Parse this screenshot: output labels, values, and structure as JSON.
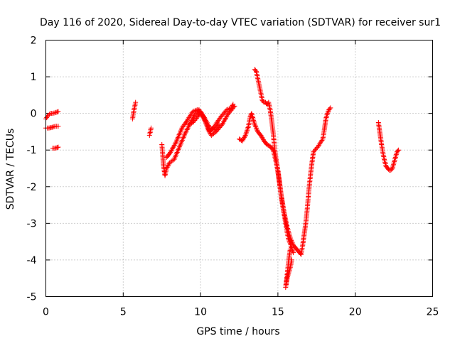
{
  "chart_data": {
    "type": "scatter",
    "title": "Day 116 of 2020, Sidereal Day-to-day VTEC variation (SDTVAR) for receiver sur1",
    "xlabel": "GPS time / hours",
    "ylabel": "SDTVAR / TECUs",
    "xlim": [
      0,
      25
    ],
    "ylim": [
      -5,
      2
    ],
    "xticks": [
      0,
      5,
      10,
      15,
      20,
      25
    ],
    "yticks": [
      -5,
      -4,
      -3,
      -2,
      -1,
      0,
      1,
      2
    ],
    "xtick_labels": [
      "0",
      "5",
      "10",
      "15",
      "20",
      "25"
    ],
    "ytick_labels": [
      "-5",
      "-4",
      "-3",
      "-2",
      "-1",
      "0",
      "1",
      "2"
    ],
    "grid": true,
    "marker": "+",
    "series": [
      {
        "name": "sur1",
        "color": "#ff0000",
        "segments": [
          [
            [
              0.0,
              -0.15
            ],
            [
              0.15,
              -0.05
            ],
            [
              0.3,
              0.0
            ],
            [
              0.45,
              0.0
            ],
            [
              0.6,
              0.02
            ],
            [
              0.8,
              0.05
            ]
          ],
          [
            [
              0.0,
              -0.4
            ],
            [
              0.2,
              -0.4
            ],
            [
              0.4,
              -0.38
            ],
            [
              0.6,
              -0.35
            ],
            [
              0.8,
              -0.35
            ]
          ],
          [
            [
              0.45,
              -0.95
            ],
            [
              0.6,
              -0.95
            ],
            [
              0.8,
              -0.92
            ]
          ],
          [
            [
              5.6,
              -0.15
            ],
            [
              5.7,
              0.1
            ],
            [
              5.8,
              0.3
            ]
          ],
          [
            [
              6.7,
              -0.6
            ],
            [
              6.8,
              -0.4
            ]
          ],
          [
            [
              7.5,
              -0.85
            ],
            [
              7.55,
              -1.1
            ],
            [
              7.6,
              -1.4
            ],
            [
              7.7,
              -1.7
            ],
            [
              7.8,
              -1.5
            ],
            [
              8.0,
              -1.35
            ],
            [
              8.3,
              -1.25
            ],
            [
              8.6,
              -0.95
            ],
            [
              9.0,
              -0.55
            ],
            [
              9.3,
              -0.3
            ],
            [
              9.6,
              -0.05
            ],
            [
              9.9,
              0.1
            ],
            [
              10.2,
              -0.1
            ],
            [
              10.5,
              -0.45
            ],
            [
              10.7,
              -0.6
            ],
            [
              11.0,
              -0.5
            ],
            [
              11.4,
              -0.3
            ],
            [
              11.8,
              0.0
            ],
            [
              12.2,
              0.2
            ]
          ],
          [
            [
              7.8,
              -1.2
            ],
            [
              8.0,
              -1.1
            ],
            [
              8.4,
              -0.8
            ],
            [
              8.8,
              -0.4
            ],
            [
              9.2,
              -0.15
            ],
            [
              9.5,
              0.05
            ],
            [
              9.8,
              0.1
            ],
            [
              10.1,
              -0.05
            ],
            [
              10.4,
              -0.3
            ],
            [
              10.6,
              -0.5
            ],
            [
              10.9,
              -0.35
            ],
            [
              11.3,
              -0.1
            ],
            [
              11.7,
              0.1
            ],
            [
              12.0,
              0.15
            ],
            [
              12.1,
              0.25
            ]
          ],
          [
            [
              9.2,
              -0.3
            ],
            [
              9.5,
              -0.25
            ],
            [
              9.8,
              -0.1
            ],
            [
              10.0,
              0.05
            ],
            [
              10.3,
              -0.15
            ],
            [
              10.6,
              -0.4
            ],
            [
              10.9,
              -0.45
            ],
            [
              11.2,
              -0.3
            ]
          ],
          [
            [
              12.5,
              -0.7
            ],
            [
              12.7,
              -0.75
            ],
            [
              12.9,
              -0.6
            ],
            [
              13.1,
              -0.35
            ],
            [
              13.2,
              -0.1
            ],
            [
              13.3,
              0.0
            ],
            [
              13.5,
              -0.3
            ],
            [
              13.7,
              -0.5
            ],
            [
              13.9,
              -0.6
            ],
            [
              14.1,
              -0.75
            ],
            [
              14.3,
              -0.85
            ],
            [
              14.5,
              -0.9
            ],
            [
              14.7,
              -1.0
            ],
            [
              14.9,
              -1.35
            ],
            [
              15.0,
              -1.6
            ],
            [
              15.1,
              -1.9
            ],
            [
              15.2,
              -2.2
            ],
            [
              15.4,
              -2.7
            ],
            [
              15.6,
              -3.1
            ],
            [
              15.8,
              -3.4
            ],
            [
              16.0,
              -3.6
            ],
            [
              16.2,
              -3.7
            ],
            [
              16.4,
              -3.8
            ],
            [
              16.5,
              -3.85
            ],
            [
              16.6,
              -3.6
            ],
            [
              16.7,
              -3.3
            ],
            [
              16.8,
              -3.0
            ],
            [
              16.9,
              -2.6
            ],
            [
              17.0,
              -2.1
            ],
            [
              17.1,
              -1.7
            ],
            [
              17.2,
              -1.35
            ],
            [
              17.3,
              -1.05
            ],
            [
              17.6,
              -0.9
            ],
            [
              17.9,
              -0.7
            ],
            [
              18.0,
              -0.45
            ],
            [
              18.1,
              -0.15
            ],
            [
              18.2,
              0.0
            ],
            [
              18.3,
              0.1
            ],
            [
              18.4,
              0.15
            ]
          ],
          [
            [
              13.5,
              1.2
            ],
            [
              13.6,
              1.15
            ],
            [
              13.7,
              0.95
            ],
            [
              13.8,
              0.75
            ],
            [
              13.9,
              0.55
            ],
            [
              14.0,
              0.35
            ],
            [
              14.1,
              0.3
            ],
            [
              14.2,
              0.3
            ],
            [
              14.3,
              0.25
            ],
            [
              14.4,
              0.3
            ],
            [
              14.5,
              0.1
            ],
            [
              14.6,
              -0.2
            ],
            [
              14.7,
              -0.55
            ],
            [
              14.8,
              -1.0
            ],
            [
              14.9,
              -1.3
            ],
            [
              15.0,
              -1.55
            ],
            [
              15.1,
              -1.85
            ],
            [
              15.2,
              -2.2
            ],
            [
              15.3,
              -2.5
            ],
            [
              15.4,
              -2.75
            ],
            [
              15.5,
              -3.0
            ],
            [
              15.6,
              -3.25
            ],
            [
              15.7,
              -3.45
            ],
            [
              15.8,
              -3.55
            ],
            [
              15.9,
              -3.7
            ],
            [
              16.0,
              -3.8
            ]
          ],
          [
            [
              15.8,
              -3.7
            ],
            [
              15.7,
              -4.0
            ],
            [
              15.6,
              -4.4
            ],
            [
              15.5,
              -4.75
            ],
            [
              15.6,
              -4.5
            ],
            [
              15.8,
              -4.2
            ],
            [
              15.9,
              -4.0
            ]
          ],
          [
            [
              21.5,
              -0.25
            ],
            [
              21.6,
              -0.55
            ],
            [
              21.7,
              -0.85
            ],
            [
              21.8,
              -1.1
            ],
            [
              21.9,
              -1.3
            ],
            [
              22.0,
              -1.45
            ],
            [
              22.1,
              -1.5
            ],
            [
              22.2,
              -1.55
            ],
            [
              22.3,
              -1.55
            ],
            [
              22.4,
              -1.5
            ],
            [
              22.5,
              -1.35
            ],
            [
              22.6,
              -1.2
            ],
            [
              22.7,
              -1.05
            ],
            [
              22.8,
              -1.0
            ]
          ]
        ]
      }
    ]
  }
}
